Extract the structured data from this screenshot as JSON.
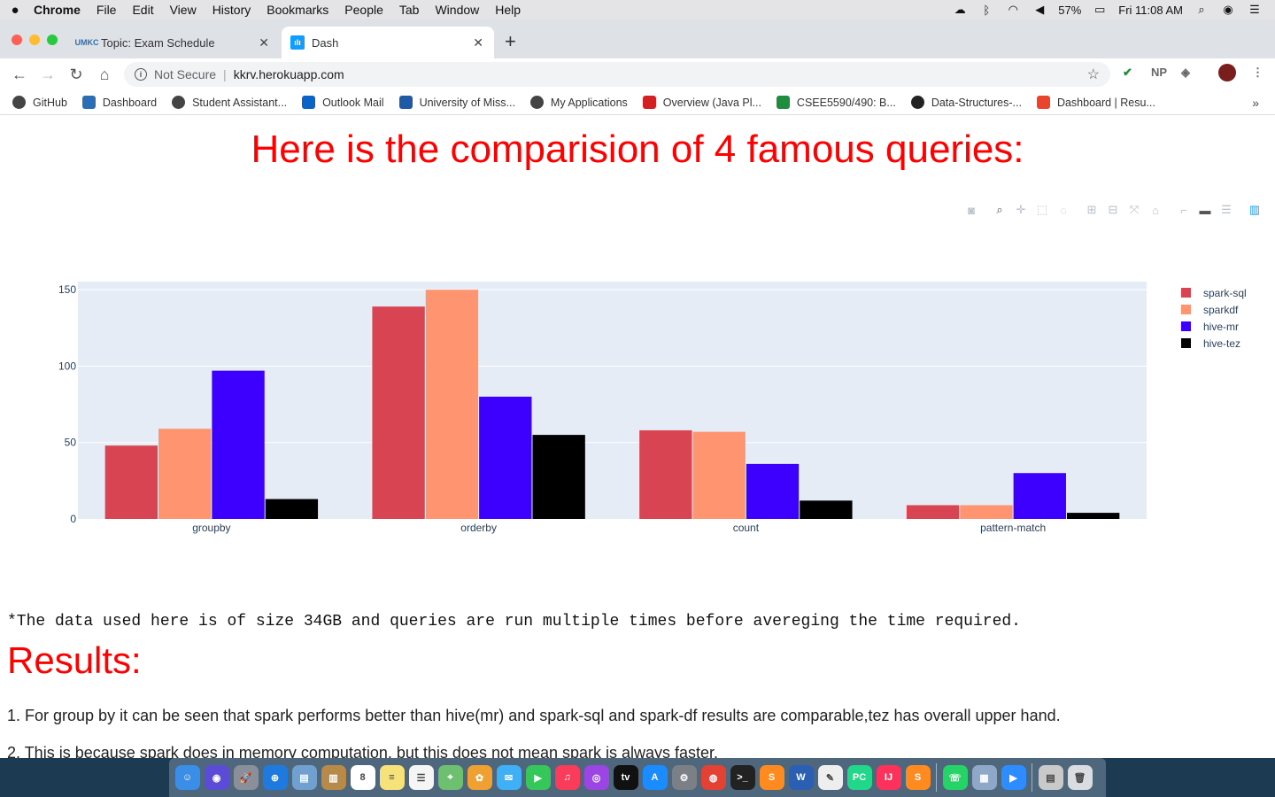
{
  "menubar": {
    "app": "Chrome",
    "items": [
      "File",
      "Edit",
      "View",
      "History",
      "Bookmarks",
      "People",
      "Tab",
      "Window",
      "Help"
    ],
    "battery": "57%",
    "clock": "Fri 11:08 AM"
  },
  "tabs": [
    {
      "label": "Topic: Exam Schedule",
      "active": false
    },
    {
      "label": "Dash",
      "active": true
    }
  ],
  "address": {
    "security": "Not Secure",
    "url": "kkrv.herokuapp.com"
  },
  "toolbar": {
    "np_label": "NP"
  },
  "bookmarks": [
    {
      "label": "GitHub",
      "icon": "globe-icon",
      "color": "#444444"
    },
    {
      "label": "Dashboard",
      "icon": "umkc-icon",
      "color": "#2a6fb5"
    },
    {
      "label": "Student Assistant...",
      "icon": "globe-icon",
      "color": "#444444"
    },
    {
      "label": "Outlook Mail",
      "icon": "outlook-icon",
      "color": "#0a64c8"
    },
    {
      "label": "University of Miss...",
      "icon": "university-icon",
      "color": "#1f5aa6"
    },
    {
      "label": "My Applications",
      "icon": "globe-icon",
      "color": "#444444"
    },
    {
      "label": "Overview (Java Pl...",
      "icon": "oracle-icon",
      "color": "#d32020"
    },
    {
      "label": "CSEE5590/490: B...",
      "icon": "plus-icon",
      "color": "#1e8e3e"
    },
    {
      "label": "Data-Structures-...",
      "icon": "github-icon",
      "color": "#222222"
    },
    {
      "label": "Dashboard | Resu...",
      "icon": "g-icon",
      "color": "#e8452c"
    }
  ],
  "page": {
    "title": "Here is the comparision of 4 famous queries:",
    "note": "*The data used here is of size 34GB and queries are run multiple times before avereging the time required.",
    "results_heading": "Results:",
    "points": [
      "1. For group by it can be seen that spark performs better than hive(mr) and spark-sql and spark-df results are comparable,tez has overall upper hand.",
      "2. This is because spark does in memory computation, but this does not mean spark is always faster."
    ]
  },
  "chart_data": {
    "type": "bar",
    "categories": [
      "groupby",
      "orderby",
      "count",
      "pattern-match"
    ],
    "series": [
      {
        "name": "spark-sql",
        "color": "#d94452",
        "values": [
          48,
          139,
          58,
          9
        ]
      },
      {
        "name": "sparkdf",
        "color": "#ff9470",
        "values": [
          59,
          150,
          57,
          9
        ]
      },
      {
        "name": "hive-mr",
        "color": "#3d00ff",
        "values": [
          97,
          80,
          36,
          30
        ]
      },
      {
        "name": "hive-tez",
        "color": "#000000",
        "values": [
          13,
          55,
          12,
          4
        ]
      }
    ],
    "yticks": [
      0,
      50,
      100,
      150
    ],
    "ylim": [
      0,
      155
    ],
    "grid": true,
    "legend": "right",
    "plot_bg": "#e5ecf6"
  },
  "dock": {
    "apps": [
      {
        "icon": "finder-icon",
        "color": "#3b8ee8",
        "glyph": "☺"
      },
      {
        "icon": "siri-icon",
        "color": "#5b4bd6",
        "glyph": "◉"
      },
      {
        "icon": "launchpad-icon",
        "color": "#8a8f99",
        "glyph": "🚀"
      },
      {
        "icon": "safari-icon",
        "color": "#1f7ae0",
        "glyph": "⊕"
      },
      {
        "icon": "preview-icon",
        "color": "#6fa0d0",
        "glyph": "▤"
      },
      {
        "icon": "notes-brown-icon",
        "color": "#b88a4a",
        "glyph": "▥"
      },
      {
        "icon": "calendar-icon",
        "color": "#ffffff",
        "glyph": "8"
      },
      {
        "icon": "notes-icon",
        "color": "#f7e27a",
        "glyph": "≡"
      },
      {
        "icon": "reminders-icon",
        "color": "#f5f5f5",
        "glyph": "☰"
      },
      {
        "icon": "maps-icon",
        "color": "#6cc070",
        "glyph": "⌖"
      },
      {
        "icon": "photos-icon",
        "color": "#f0a030",
        "glyph": "✿"
      },
      {
        "icon": "messages-icon",
        "color": "#3fb0f5",
        "glyph": "✉"
      },
      {
        "icon": "facetime-icon",
        "color": "#35c759",
        "glyph": "▶"
      },
      {
        "icon": "music-icon",
        "color": "#fa3c5a",
        "glyph": "♫"
      },
      {
        "icon": "podcasts-icon",
        "color": "#9b45e4",
        "glyph": "◎"
      },
      {
        "icon": "tv-icon",
        "color": "#111111",
        "glyph": "tv"
      },
      {
        "icon": "appstore-icon",
        "color": "#1a8cff",
        "glyph": "A"
      },
      {
        "icon": "settings-icon",
        "color": "#7b7f86",
        "glyph": "⚙"
      },
      {
        "icon": "chrome-icon",
        "color": "#e34133",
        "glyph": "◍"
      },
      {
        "icon": "terminal-icon",
        "color": "#222222",
        "glyph": ">_"
      },
      {
        "icon": "sublime-icon",
        "color": "#ff8a1f",
        "glyph": "S"
      },
      {
        "icon": "word-icon",
        "color": "#2b5fb4",
        "glyph": "W"
      },
      {
        "icon": "textedit-icon",
        "color": "#eeeeee",
        "glyph": "✎"
      },
      {
        "icon": "pycharm-icon",
        "color": "#21d789",
        "glyph": "PC"
      },
      {
        "icon": "intellij-icon",
        "color": "#fe315d",
        "glyph": "IJ"
      },
      {
        "icon": "sublime2-icon",
        "color": "#ff8a1f",
        "glyph": "S"
      },
      {
        "icon": "whatsapp-icon",
        "color": "#25d366",
        "glyph": "☏"
      },
      {
        "icon": "directory-icon",
        "color": "#8fa8c8",
        "glyph": "▦"
      },
      {
        "icon": "zoom-icon",
        "color": "#2d8cff",
        "glyph": "▶"
      },
      {
        "icon": "downloads-icon",
        "color": "#c9c9c9",
        "glyph": "▤"
      },
      {
        "icon": "trash-icon",
        "color": "#d9dde2",
        "glyph": "🗑"
      }
    ]
  }
}
